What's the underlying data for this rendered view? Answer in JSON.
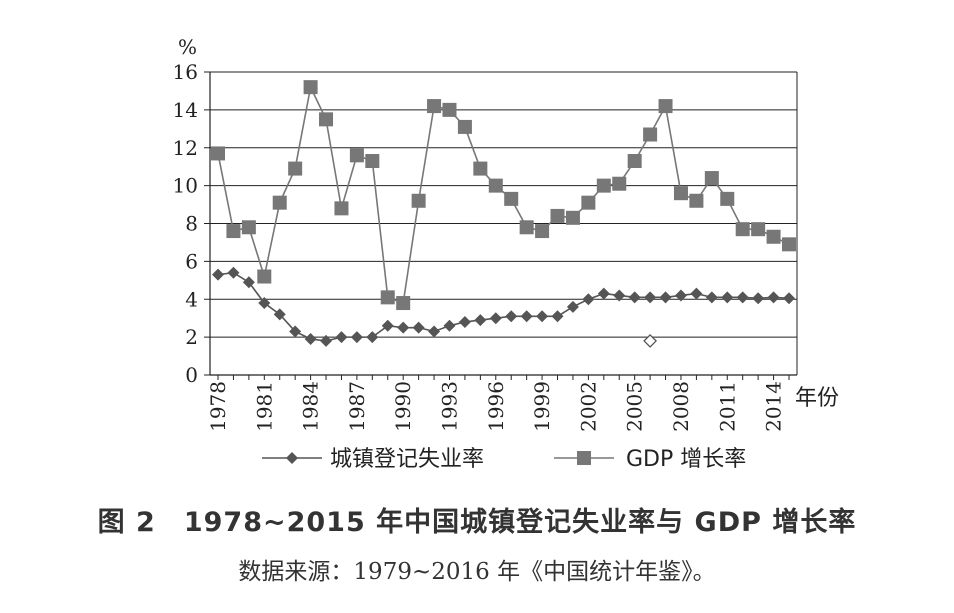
{
  "figure": {
    "title": "图 2　1978~2015 年中国城镇登记失业率与 GDP 增长率",
    "source": "数据来源：1979~2016 年《中国统计年鉴》。"
  },
  "chart_data": {
    "type": "line",
    "y_unit": "%",
    "xlabel": "年份",
    "ylim": [
      0,
      16
    ],
    "yticks": [
      0,
      2,
      4,
      6,
      8,
      10,
      12,
      14,
      16
    ],
    "grid": true,
    "legend_position": "bottom",
    "x": [
      1978,
      1979,
      1980,
      1981,
      1982,
      1983,
      1984,
      1985,
      1986,
      1987,
      1988,
      1989,
      1990,
      1991,
      1992,
      1993,
      1994,
      1995,
      1996,
      1997,
      1998,
      1999,
      2000,
      2001,
      2002,
      2003,
      2004,
      2005,
      2006,
      2007,
      2008,
      2009,
      2010,
      2011,
      2012,
      2013,
      2014,
      2015
    ],
    "xtick_labels": [
      "1978",
      "1981",
      "1984",
      "1987",
      "1990",
      "1993",
      "1996",
      "1999",
      "2002",
      "2005",
      "2008",
      "2011",
      "2014"
    ],
    "series": [
      {
        "name": "城镇登记失业率",
        "marker": "diamond",
        "color": "#555555",
        "values": [
          5.3,
          5.4,
          4.9,
          3.8,
          3.2,
          2.3,
          1.9,
          1.8,
          2.0,
          2.0,
          2.0,
          2.6,
          2.5,
          2.5,
          2.3,
          2.6,
          2.8,
          2.9,
          3.0,
          3.1,
          3.1,
          3.1,
          3.1,
          3.6,
          4.0,
          4.3,
          4.2,
          4.1,
          4.1,
          4.1,
          4.2,
          4.3,
          4.1,
          4.1,
          4.1,
          4.05,
          4.1,
          4.05
        ]
      },
      {
        "name": "GDP 增长率",
        "marker": "square",
        "color": "#777777",
        "values": [
          11.7,
          7.6,
          7.8,
          5.2,
          9.1,
          10.9,
          15.2,
          13.5,
          8.8,
          11.6,
          11.3,
          4.1,
          3.8,
          9.2,
          14.2,
          14.0,
          13.1,
          10.9,
          10.0,
          9.3,
          7.8,
          7.6,
          8.4,
          8.3,
          9.1,
          10.0,
          10.1,
          11.3,
          12.7,
          14.2,
          9.6,
          9.2,
          10.4,
          9.3,
          7.7,
          7.7,
          7.3,
          6.9
        ]
      }
    ],
    "annotations": [
      {
        "marker": "hollow-diamond",
        "x": 2006,
        "y": 1.8
      }
    ]
  }
}
